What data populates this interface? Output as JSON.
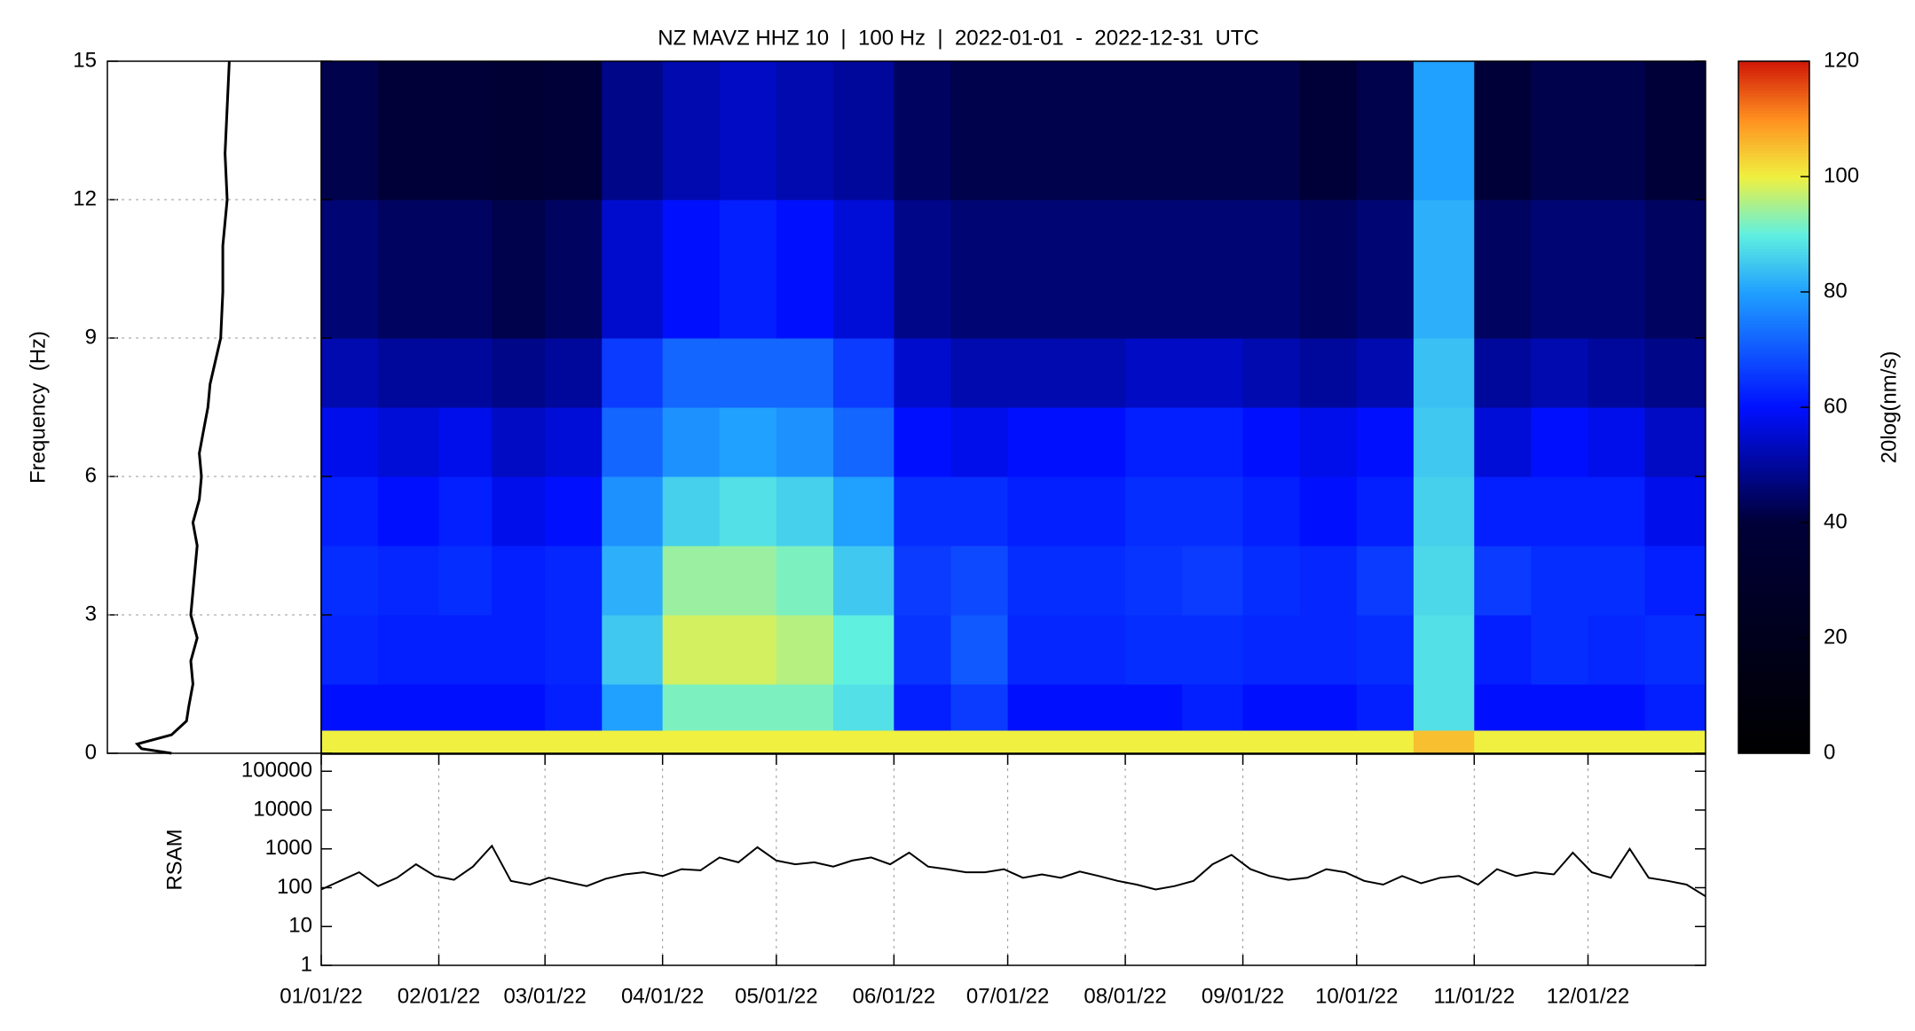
{
  "chart_data": [
    {
      "type": "heatmap",
      "title": "NZ MAVZ HHZ 10  |  100 Hz  |  2022-01-01  -  2022-12-31  UTC",
      "ylabel": "Frequency  (Hz)",
      "xlim": [
        0,
        365
      ],
      "ylim": [
        0,
        15
      ],
      "yticks": [
        0,
        3,
        6,
        9,
        12,
        15
      ],
      "xbins": [
        0,
        15,
        31,
        45,
        59,
        74,
        90,
        105,
        120,
        135,
        151,
        166,
        181,
        196,
        212,
        227,
        243,
        258,
        273,
        288,
        304,
        319,
        334,
        349,
        365
      ],
      "ybins": [
        0,
        0.5,
        1.5,
        3,
        4.5,
        6,
        7.5,
        9,
        12,
        15
      ],
      "z": [
        [
          100,
          100,
          100,
          100,
          100,
          100,
          100,
          100,
          100,
          100,
          100,
          100,
          100,
          100,
          100,
          100,
          100,
          100,
          100,
          105,
          100,
          100,
          100,
          100
        ],
        [
          60,
          60,
          60,
          60,
          62,
          80,
          92,
          92,
          92,
          88,
          62,
          66,
          60,
          60,
          60,
          62,
          60,
          60,
          62,
          88,
          60,
          60,
          60,
          62
        ],
        [
          63,
          62,
          62,
          62,
          63,
          85,
          98,
          98,
          96,
          90,
          65,
          70,
          63,
          63,
          64,
          64,
          63,
          63,
          64,
          88,
          62,
          64,
          63,
          64
        ],
        [
          64,
          63,
          64,
          62,
          63,
          82,
          94,
          94,
          92,
          85,
          66,
          68,
          64,
          64,
          65,
          66,
          64,
          63,
          66,
          87,
          66,
          64,
          64,
          62
        ],
        [
          62,
          60,
          62,
          58,
          60,
          78,
          86,
          88,
          86,
          80,
          64,
          64,
          62,
          62,
          64,
          64,
          62,
          60,
          62,
          86,
          62,
          62,
          62,
          58
        ],
        [
          58,
          56,
          58,
          54,
          56,
          72,
          78,
          80,
          78,
          72,
          60,
          58,
          60,
          60,
          62,
          62,
          60,
          58,
          60,
          85,
          56,
          60,
          58,
          54
        ],
        [
          52,
          50,
          50,
          48,
          50,
          66,
          72,
          72,
          72,
          66,
          55,
          52,
          52,
          52,
          54,
          54,
          52,
          50,
          52,
          84,
          50,
          52,
          50,
          48
        ],
        [
          46,
          44,
          44,
          42,
          44,
          55,
          60,
          62,
          60,
          56,
          48,
          46,
          46,
          46,
          46,
          46,
          46,
          44,
          46,
          82,
          44,
          46,
          46,
          44
        ],
        [
          42,
          40,
          40,
          38,
          40,
          48,
          52,
          54,
          52,
          50,
          44,
          42,
          42,
          42,
          42,
          42,
          42,
          40,
          42,
          80,
          40,
          42,
          42,
          40
        ]
      ],
      "zlim": [
        0,
        120
      ],
      "zticks": [
        0,
        20,
        40,
        60,
        80,
        100,
        120
      ],
      "zlabel": "20log(nm/s)",
      "colorscale": [
        [
          0,
          "#000000"
        ],
        [
          40,
          "#000038"
        ],
        [
          60,
          "#0010ff"
        ],
        [
          80,
          "#20a0ff"
        ],
        [
          90,
          "#60f0e0"
        ],
        [
          100,
          "#f0f040"
        ],
        [
          110,
          "#ff9020"
        ],
        [
          120,
          "#d01808"
        ]
      ]
    },
    {
      "type": "profile",
      "xlim": [
        0,
        100
      ],
      "ylim": [
        0,
        15
      ],
      "grid": true,
      "color": "#000000",
      "y": [
        0,
        0.1,
        0.2,
        0.4,
        0.7,
        1,
        1.5,
        2,
        2.5,
        3,
        3.5,
        4,
        4.5,
        5,
        5.5,
        6,
        6.5,
        7,
        7.5,
        8,
        9,
        10,
        11,
        12,
        13,
        14,
        15
      ],
      "values": [
        30,
        16,
        14,
        30,
        37,
        38,
        40,
        39,
        42,
        39,
        40,
        41,
        42,
        40,
        43,
        44,
        43,
        45,
        47,
        48,
        53,
        54,
        54,
        56,
        55,
        56,
        57
      ]
    },
    {
      "type": "line",
      "ylabel": "RSAM",
      "log_y": true,
      "grid": true,
      "color": "#000000",
      "ylim": [
        1,
        275000
      ],
      "yticks": [
        1,
        10,
        100,
        1000,
        10000,
        100000
      ],
      "xlim": [
        0,
        365
      ],
      "xticks": [
        {
          "value": 0,
          "label": "01/01/22"
        },
        {
          "value": 31,
          "label": "02/01/22"
        },
        {
          "value": 59,
          "label": "03/01/22"
        },
        {
          "value": 90,
          "label": "04/01/22"
        },
        {
          "value": 120,
          "label": "05/01/22"
        },
        {
          "value": 151,
          "label": "06/01/22"
        },
        {
          "value": 181,
          "label": "07/01/22"
        },
        {
          "value": 212,
          "label": "08/01/22"
        },
        {
          "value": 243,
          "label": "09/01/22"
        },
        {
          "value": 273,
          "label": "10/01/22"
        },
        {
          "value": 304,
          "label": "11/01/22"
        },
        {
          "value": 334,
          "label": "12/01/22"
        }
      ],
      "x": [
        0,
        5,
        10,
        15,
        20,
        25,
        30,
        35,
        40,
        45,
        50,
        55,
        60,
        65,
        70,
        75,
        80,
        85,
        90,
        95,
        100,
        105,
        110,
        115,
        120,
        125,
        130,
        135,
        140,
        145,
        150,
        155,
        160,
        165,
        170,
        175,
        180,
        185,
        190,
        195,
        200,
        205,
        210,
        215,
        220,
        225,
        230,
        235,
        240,
        245,
        250,
        255,
        260,
        265,
        270,
        275,
        280,
        285,
        290,
        295,
        300,
        305,
        310,
        315,
        320,
        325,
        330,
        335,
        340,
        345,
        350,
        355,
        360,
        365
      ],
      "values": [
        90,
        150,
        250,
        110,
        180,
        400,
        200,
        160,
        350,
        1200,
        150,
        120,
        180,
        140,
        110,
        170,
        220,
        250,
        200,
        300,
        280,
        600,
        450,
        1100,
        500,
        400,
        450,
        350,
        500,
        600,
        400,
        800,
        350,
        300,
        250,
        250,
        300,
        180,
        220,
        180,
        260,
        200,
        150,
        120,
        90,
        110,
        150,
        400,
        700,
        300,
        200,
        160,
        180,
        300,
        250,
        150,
        120,
        200,
        130,
        180,
        200,
        120,
        300,
        200,
        250,
        220,
        800,
        250,
        180,
        1000,
        180,
        150,
        120,
        60
      ]
    }
  ]
}
